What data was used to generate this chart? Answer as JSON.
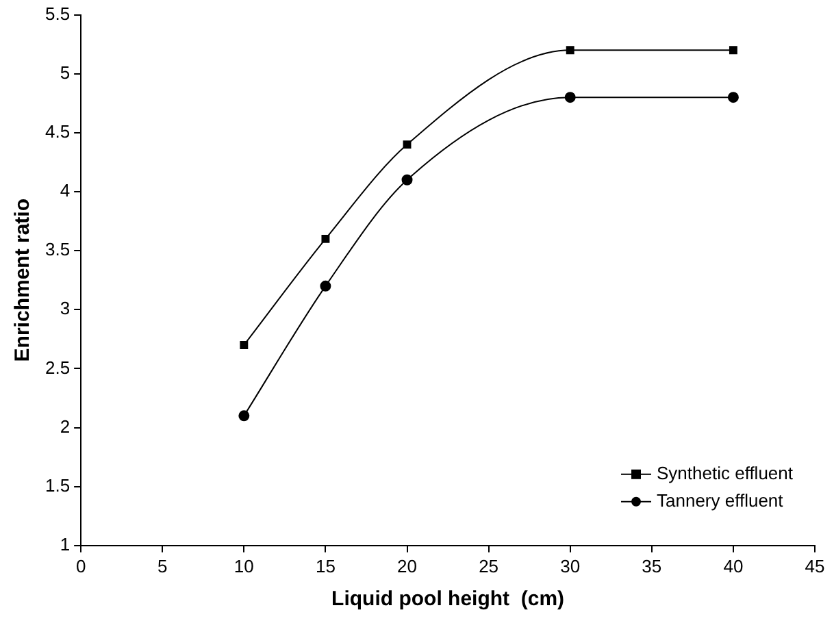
{
  "chart_data": {
    "type": "line",
    "xlabel": "Liquid pool height  (cm)",
    "ylabel": "Enrichment ratio",
    "x": [
      10,
      15,
      20,
      30,
      40
    ],
    "series": [
      {
        "name": "Synthetic effluent",
        "color": "#000000",
        "marker": "square",
        "values": [
          2.7,
          3.6,
          4.4,
          5.2,
          5.2
        ]
      },
      {
        "name": "Tannery effluent",
        "color": "#000000",
        "marker": "circle",
        "values": [
          2.1,
          3.2,
          4.1,
          4.8,
          4.8
        ]
      }
    ],
    "xlim": [
      0,
      45
    ],
    "xticks": [
      0,
      5,
      10,
      15,
      20,
      25,
      30,
      35,
      40,
      45
    ],
    "ylim": [
      1,
      5.5
    ],
    "yticks": [
      1,
      1.5,
      2,
      2.5,
      3,
      3.5,
      4,
      4.5,
      5,
      5.5
    ],
    "grid": false,
    "legend": "bottom right",
    "line_style": "solid"
  }
}
